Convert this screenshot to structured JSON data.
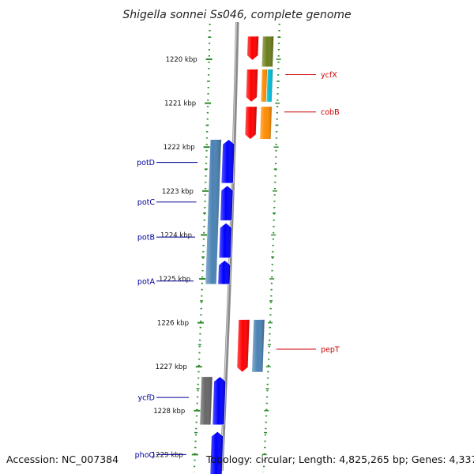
{
  "title": "Shigella sonnei Ss046, complete genome",
  "footer": {
    "accession": "Accession: NC_007384",
    "topology": "Topology: circular; Length: 4,825,265 bp; Genes: 4,337"
  },
  "axis_ticks": [
    {
      "label": "1220 kbp",
      "kbp": 1220
    },
    {
      "label": "1221 kbp",
      "kbp": 1221
    },
    {
      "label": "1222 kbp",
      "kbp": 1222
    },
    {
      "label": "1223 kbp",
      "kbp": 1223
    },
    {
      "label": "1224 kbp",
      "kbp": 1224
    },
    {
      "label": "1225 kbp",
      "kbp": 1225
    },
    {
      "label": "1226 kbp",
      "kbp": 1226
    },
    {
      "label": "1227 kbp",
      "kbp": 1227
    },
    {
      "label": "1228 kbp",
      "kbp": 1228
    },
    {
      "label": "1229 kbp",
      "kbp": 1229
    }
  ],
  "gene_labels": [
    {
      "name": "ycfX",
      "strand": "forward",
      "kbp": 1220.35,
      "color": "#cc0000"
    },
    {
      "name": "cobB",
      "strand": "forward",
      "kbp": 1221.2,
      "color": "#cc0000"
    },
    {
      "name": "potD",
      "strand": "reverse",
      "kbp": 1222.35,
      "color": "#000099"
    },
    {
      "name": "potC",
      "strand": "reverse",
      "kbp": 1223.25,
      "color": "#000099"
    },
    {
      "name": "potB",
      "strand": "reverse",
      "kbp": 1224.05,
      "color": "#000099"
    },
    {
      "name": "potA",
      "strand": "reverse",
      "kbp": 1225.05,
      "color": "#000099"
    },
    {
      "name": "pepT",
      "strand": "forward",
      "kbp": 1226.6,
      "color": "#cc0000"
    },
    {
      "name": "ycfD",
      "strand": "reverse",
      "kbp": 1227.7,
      "color": "#000099"
    },
    {
      "name": "phoQ",
      "strand": "reverse",
      "kbp": 1229.0,
      "color": "#000099"
    }
  ],
  "features": [
    {
      "lane": "fwd-orf",
      "start": 1219.45,
      "end": 1220.05,
      "color": "#ff0000"
    },
    {
      "lane": "fwd-orf",
      "start": 1220.2,
      "end": 1221.0,
      "color": "#ff0000"
    },
    {
      "lane": "fwd-orf",
      "start": 1221.05,
      "end": 1221.85,
      "color": "#ff0000"
    },
    {
      "lane": "fwd-orf",
      "start": 1225.9,
      "end": 1227.15,
      "color": "#ff0000"
    },
    {
      "lane": "fwd-cog",
      "start": 1219.45,
      "end": 1220.2,
      "color": "#6b7f1a"
    },
    {
      "lane": "fwd-cog",
      "start": 1220.2,
      "end": 1221.0,
      "color": "#ff8c00",
      "half": "left"
    },
    {
      "lane": "fwd-cog",
      "start": 1220.2,
      "end": 1221.0,
      "color": "#00bcd4",
      "half": "right"
    },
    {
      "lane": "fwd-cog",
      "start": 1221.05,
      "end": 1221.85,
      "color": "#ff8c00"
    },
    {
      "lane": "fwd-cog",
      "start": 1225.9,
      "end": 1227.15,
      "color": "#4a82b4"
    },
    {
      "lane": "rev-cog",
      "start": 1221.8,
      "end": 1225.15,
      "color": "#4a82b4"
    },
    {
      "lane": "rev-orf",
      "start": 1221.8,
      "end": 1222.85,
      "color": "#0000ff"
    },
    {
      "lane": "rev-orf",
      "start": 1222.85,
      "end": 1223.7,
      "color": "#0000ff"
    },
    {
      "lane": "rev-orf",
      "start": 1223.7,
      "end": 1224.55,
      "color": "#0000ff"
    },
    {
      "lane": "rev-orf",
      "start": 1224.55,
      "end": 1225.15,
      "color": "#0000ff"
    },
    {
      "lane": "rev-cog",
      "start": 1227.2,
      "end": 1228.35,
      "color": "#666666"
    },
    {
      "lane": "rev-orf",
      "start": 1227.2,
      "end": 1228.35,
      "color": "#0000ff"
    },
    {
      "lane": "rev-orf",
      "start": 1228.45,
      "end": 1229.6,
      "color": "#0000ff"
    }
  ]
}
